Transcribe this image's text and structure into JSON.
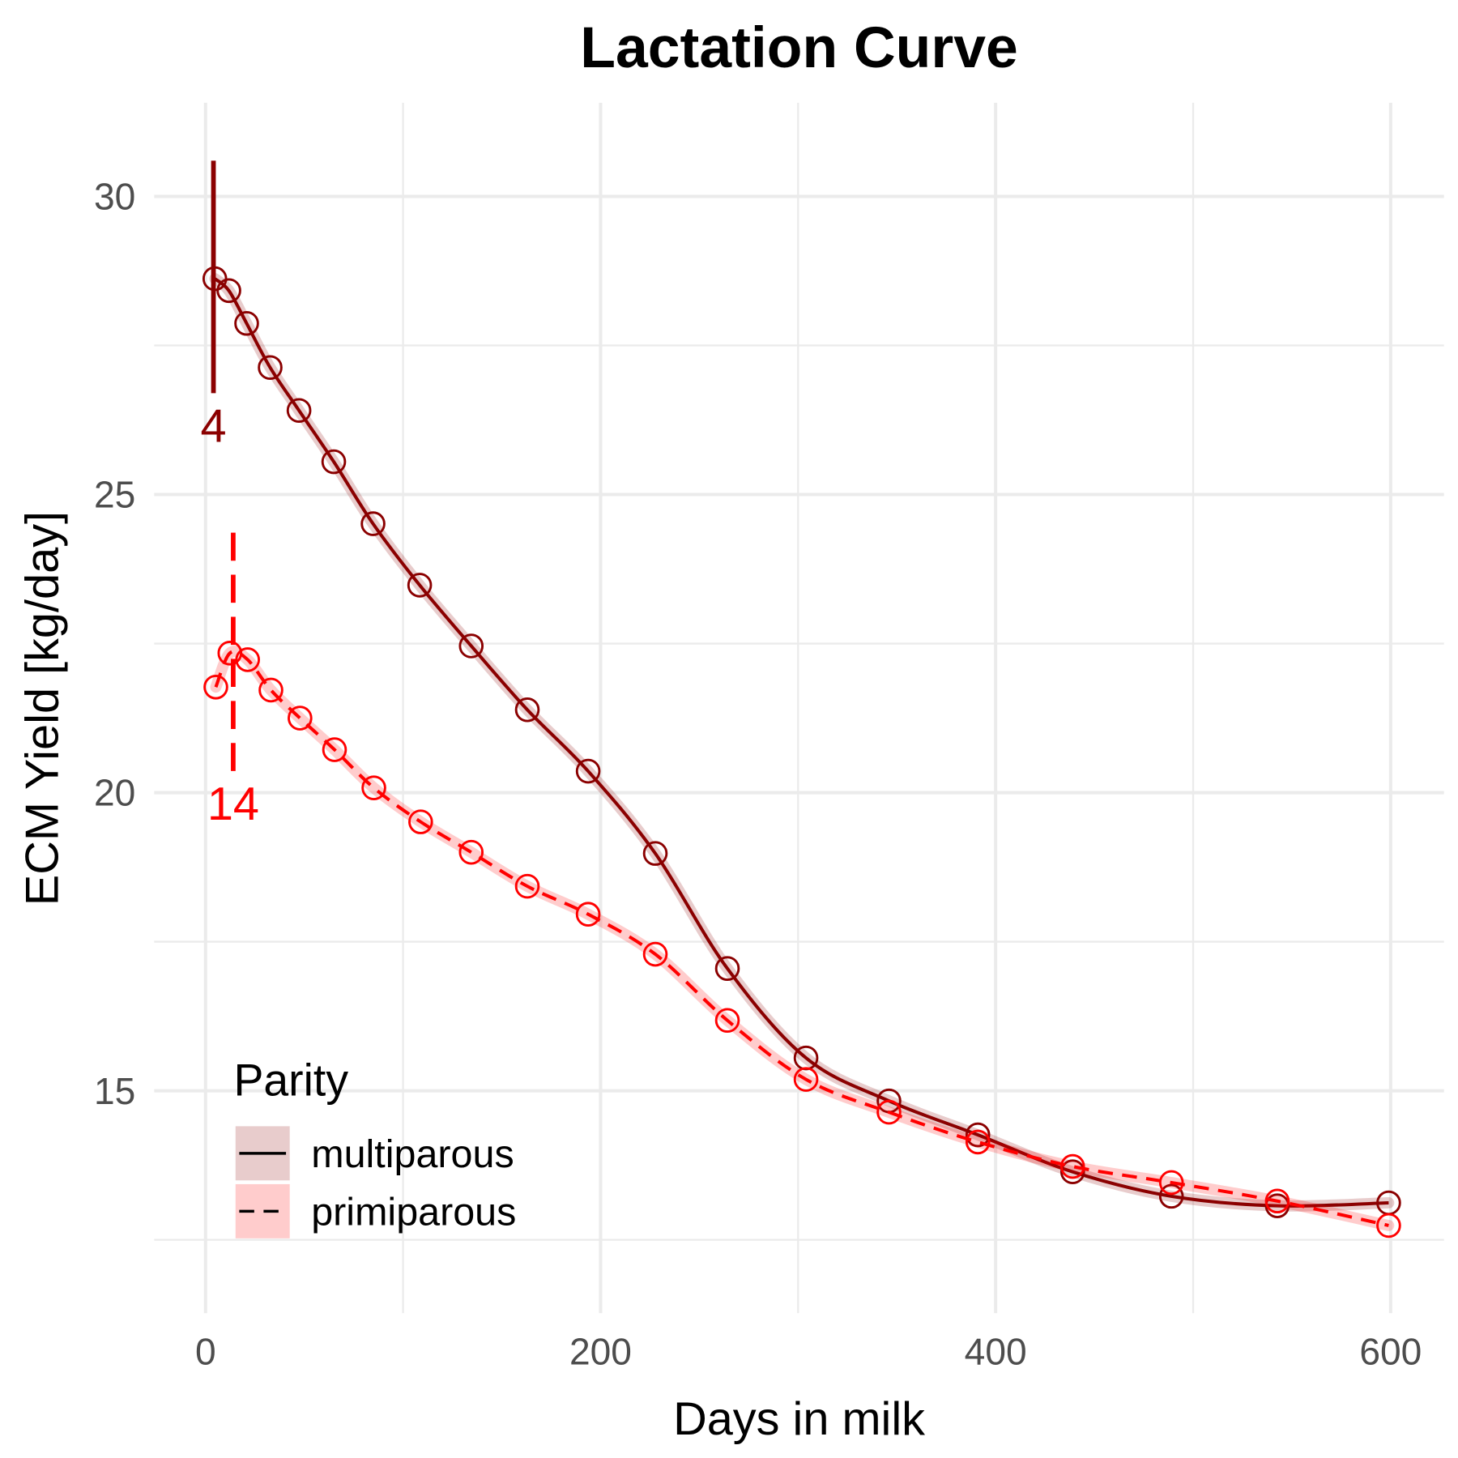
{
  "chart_data": {
    "type": "line",
    "title": "Lactation Curve",
    "x_label": "Days in milk",
    "y_label": "ECM Yield [kg/day]",
    "xlim": [
      -26,
      627
    ],
    "ylim": [
      11.27,
      31.57
    ],
    "xticks": [
      0,
      200,
      400,
      600
    ],
    "yticks": [
      15,
      20,
      25,
      30
    ],
    "minor_xticks": [
      100,
      300,
      500
    ],
    "minor_yticks": [
      12.5,
      17.5,
      22.5,
      27.5
    ],
    "grid": true,
    "legend_title": "Parity",
    "legend_position": "bottom-left",
    "series": [
      {
        "name": "multiparous",
        "color": "#8b0000",
        "dash": false,
        "x": [
          4.7,
          11.8,
          20.8,
          32.7,
          47.3,
          64.9,
          84.8,
          108.4,
          134.5,
          162.9,
          193.7,
          227.7,
          264.2,
          304,
          346,
          391,
          439,
          489,
          542.6,
          599
        ],
        "values": [
          28.62,
          28.42,
          27.87,
          27.13,
          26.41,
          25.55,
          24.51,
          23.48,
          22.46,
          21.39,
          20.36,
          18.98,
          17.05,
          15.55,
          14.83,
          14.26,
          13.64,
          13.23,
          13.07,
          13.12
        ]
      },
      {
        "name": "primiparous",
        "color": "#ff0000",
        "dash": true,
        "x": [
          5.2,
          12.3,
          21.3,
          33.1,
          47.8,
          65.3,
          85.2,
          108.9,
          134.5,
          162.9,
          193.7,
          227.7,
          264.2,
          304,
          346,
          391,
          439,
          489,
          542.6,
          599
        ],
        "values": [
          21.77,
          22.34,
          22.23,
          21.72,
          21.25,
          20.72,
          20.08,
          19.51,
          19.0,
          18.43,
          17.96,
          17.29,
          16.18,
          15.19,
          14.64,
          14.14,
          13.73,
          13.46,
          13.15,
          12.74
        ]
      }
    ],
    "annotations": [
      {
        "x": 4,
        "label": "4",
        "ymin": 26.7,
        "ymax": 30.6,
        "color": "#8b0000",
        "dash": false
      },
      {
        "x": 14,
        "label": "14",
        "ymin": 20.36,
        "ymax": 24.36,
        "color": "#ff0000",
        "dash": true
      }
    ]
  }
}
